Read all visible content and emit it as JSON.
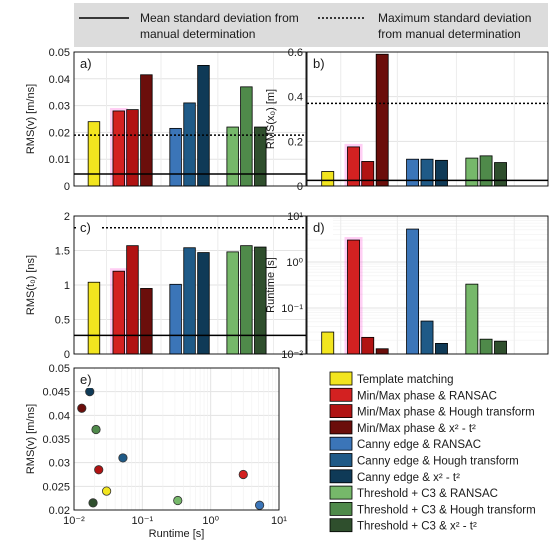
{
  "legend_top": {
    "mean_label_line1": "Mean standard deviation from",
    "mean_label_line2": "manual determination",
    "max_label_line1": "Maximum standard deviation",
    "max_label_line2": "from manual determination"
  },
  "methods": [
    {
      "label": "Template matching",
      "color": "#f2e51f"
    },
    {
      "label": "Min/Max phase & RANSAC",
      "color": "#d32121"
    },
    {
      "label": "Min/Max phase & Hough transform",
      "color": "#b11313"
    },
    {
      "label": "Min/Max phase & x² - t²",
      "color": "#6b0e0b"
    },
    {
      "label": "Canny edge & RANSAC",
      "color": "#3b75b8"
    },
    {
      "label": "Canny edge & Hough transform",
      "color": "#1f5a87"
    },
    {
      "label": "Canny edge & x² - t²",
      "color": "#0f3a57"
    },
    {
      "label": "Threshold + C3 & RANSAC",
      "color": "#76b86a"
    },
    {
      "label": "Threshold + C3 & Hough transform",
      "color": "#4f8a4a"
    },
    {
      "label": "Threshold + C3 & x² - t²",
      "color": "#2f4f2d"
    }
  ],
  "chart_data": [
    {
      "panel": "a)",
      "type": "bar",
      "ylabel": "RMS(v) [m/ns]",
      "ylim": [
        0,
        0.05
      ],
      "yticks": [
        "0",
        "0.01",
        "0.02",
        "0.03",
        "0.04",
        "0.05"
      ],
      "values": [
        0.024,
        0.028,
        0.0285,
        0.0415,
        0.0215,
        0.031,
        0.045,
        0.022,
        0.037,
        0.022
      ],
      "mean_line": 0.0045,
      "max_line": 0.019,
      "grid": true
    },
    {
      "panel": "b)",
      "type": "bar",
      "ylabel": "RMS(x₀) [m]",
      "ylim": [
        0,
        0.6
      ],
      "yticks": [
        "0",
        "0.2",
        "0.4",
        "0.6"
      ],
      "values": [
        0.065,
        0.175,
        0.11,
        0.59,
        0.12,
        0.12,
        0.115,
        0.125,
        0.135,
        0.105
      ],
      "mean_line": 0.025,
      "max_line": 0.37,
      "grid": true
    },
    {
      "panel": "c)",
      "type": "bar",
      "ylabel": "RMS(t₀) [ns]",
      "ylim": [
        0,
        2
      ],
      "yticks": [
        "0",
        "0.5",
        "1",
        "1.5",
        "2"
      ],
      "values": [
        1.04,
        1.2,
        1.57,
        0.95,
        1.01,
        1.54,
        1.47,
        1.48,
        1.57,
        1.55
      ],
      "mean_line": 0.27,
      "max_line": 1.83,
      "grid": true
    },
    {
      "panel": "d)",
      "type": "bar",
      "ylabel": "Runtime [s]",
      "yscale": "log",
      "ylim": [
        0.01,
        10
      ],
      "yticks": [
        "10⁻²",
        "10⁻¹",
        "10⁰",
        "10¹"
      ],
      "values": [
        0.03,
        3.0,
        0.023,
        0.013,
        5.2,
        0.052,
        0.017,
        0.33,
        0.021,
        0.019
      ],
      "grid": true
    },
    {
      "panel": "e)",
      "type": "scatter",
      "xlabel": "Runtime [s]",
      "ylabel": "RMS(v) [m/ns]",
      "xscale": "log",
      "xlim": [
        0.01,
        10
      ],
      "xticks": [
        "10⁻²",
        "10⁻¹",
        "10⁰",
        "10¹"
      ],
      "ylim": [
        0.02,
        0.05
      ],
      "yticks": [
        "0.02",
        "0.025",
        "0.03",
        "0.035",
        "0.04",
        "0.045",
        "0.05"
      ],
      "x": [
        0.03,
        3.0,
        0.023,
        0.013,
        5.2,
        0.052,
        0.017,
        0.33,
        0.021,
        0.019
      ],
      "y": [
        0.024,
        0.0275,
        0.0285,
        0.0415,
        0.021,
        0.031,
        0.045,
        0.022,
        0.037,
        0.0215
      ],
      "grid": true
    }
  ]
}
